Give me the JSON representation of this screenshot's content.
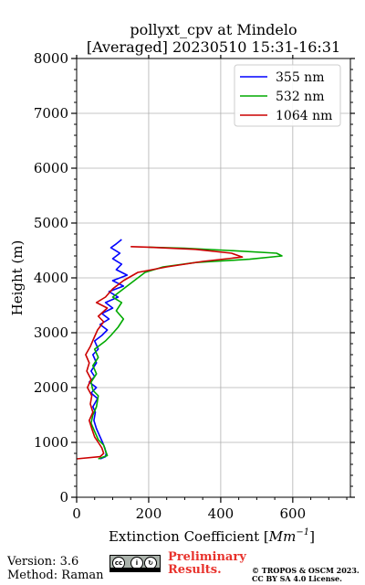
{
  "chart_data": {
    "type": "line",
    "title": "pollyxt_cpv at Mindelo",
    "subtitle": "[Averaged] 20230510 15:31-16:31",
    "xlabel": "Extinction Coefficient [",
    "xlabel_unit": "Mm",
    "xlabel_exp": "−1",
    "xlabel_close": "]",
    "ylabel": "Height (m)",
    "xlim": [
      0,
      760
    ],
    "ylim": [
      0,
      8000
    ],
    "xticks": [
      0,
      200,
      400,
      600
    ],
    "yticks": [
      0,
      1000,
      2000,
      3000,
      4000,
      5000,
      6000,
      7000,
      8000
    ],
    "grid": true,
    "legend_position": "top-right",
    "series": [
      {
        "name": "355 nm",
        "color": "#0000ff",
        "points": [
          [
            65,
            700
          ],
          [
            80,
            740
          ],
          [
            82,
            800
          ],
          [
            78,
            900
          ],
          [
            72,
            1000
          ],
          [
            65,
            1100
          ],
          [
            55,
            1250
          ],
          [
            48,
            1400
          ],
          [
            52,
            1550
          ],
          [
            45,
            1650
          ],
          [
            58,
            1800
          ],
          [
            40,
            1900
          ],
          [
            55,
            2000
          ],
          [
            35,
            2100
          ],
          [
            50,
            2200
          ],
          [
            40,
            2300
          ],
          [
            55,
            2450
          ],
          [
            45,
            2600
          ],
          [
            60,
            2700
          ],
          [
            50,
            2850
          ],
          [
            70,
            2950
          ],
          [
            85,
            3050
          ],
          [
            65,
            3150
          ],
          [
            90,
            3250
          ],
          [
            70,
            3350
          ],
          [
            100,
            3450
          ],
          [
            80,
            3550
          ],
          [
            115,
            3650
          ],
          [
            90,
            3750
          ],
          [
            130,
            3850
          ],
          [
            100,
            3950
          ],
          [
            140,
            4050
          ],
          [
            110,
            4150
          ],
          [
            125,
            4250
          ],
          [
            100,
            4350
          ],
          [
            120,
            4450
          ],
          [
            95,
            4550
          ],
          [
            110,
            4620
          ],
          [
            125,
            4700
          ]
        ]
      },
      {
        "name": "532 nm",
        "color": "#00aa00",
        "points": [
          [
            60,
            700
          ],
          [
            85,
            760
          ],
          [
            80,
            850
          ],
          [
            75,
            950
          ],
          [
            60,
            1050
          ],
          [
            50,
            1200
          ],
          [
            40,
            1350
          ],
          [
            45,
            1500
          ],
          [
            55,
            1650
          ],
          [
            60,
            1850
          ],
          [
            45,
            1950
          ],
          [
            40,
            2100
          ],
          [
            55,
            2250
          ],
          [
            45,
            2400
          ],
          [
            60,
            2550
          ],
          [
            50,
            2700
          ],
          [
            80,
            2850
          ],
          [
            95,
            2950
          ],
          [
            115,
            3100
          ],
          [
            130,
            3250
          ],
          [
            110,
            3400
          ],
          [
            125,
            3550
          ],
          [
            100,
            3650
          ],
          [
            120,
            3750
          ],
          [
            150,
            3900
          ],
          [
            190,
            4100
          ],
          [
            240,
            4200
          ],
          [
            330,
            4280
          ],
          [
            480,
            4340
          ],
          [
            570,
            4400
          ],
          [
            555,
            4450
          ],
          [
            420,
            4500
          ],
          [
            300,
            4540
          ],
          [
            200,
            4560
          ]
        ]
      },
      {
        "name": "1064 nm",
        "color": "#cc0000",
        "points": [
          [
            0,
            700
          ],
          [
            65,
            740
          ],
          [
            75,
            800
          ],
          [
            70,
            900
          ],
          [
            60,
            1000
          ],
          [
            50,
            1100
          ],
          [
            42,
            1250
          ],
          [
            35,
            1400
          ],
          [
            45,
            1550
          ],
          [
            38,
            1700
          ],
          [
            42,
            1850
          ],
          [
            30,
            2000
          ],
          [
            40,
            2150
          ],
          [
            28,
            2300
          ],
          [
            35,
            2450
          ],
          [
            25,
            2600
          ],
          [
            38,
            2750
          ],
          [
            48,
            2900
          ],
          [
            58,
            3050
          ],
          [
            75,
            3200
          ],
          [
            60,
            3300
          ],
          [
            85,
            3450
          ],
          [
            55,
            3550
          ],
          [
            80,
            3650
          ],
          [
            100,
            3800
          ],
          [
            130,
            3950
          ],
          [
            170,
            4100
          ],
          [
            250,
            4200
          ],
          [
            350,
            4300
          ],
          [
            460,
            4380
          ],
          [
            430,
            4450
          ],
          [
            330,
            4520
          ],
          [
            200,
            4560
          ],
          [
            150,
            4570
          ]
        ]
      }
    ]
  },
  "footer": {
    "version": "Version: 3.6",
    "method": "Method: Raman",
    "preliminary": "Preliminary",
    "results": "Results.",
    "copyright_line1": "© TROPOS & OSCM 2023.",
    "copyright_line2": "CC BY SA 4.0 License."
  },
  "license_badge": {
    "cc": "cc",
    "by": "i",
    "sa": "↻",
    "by_label": "BY",
    "sa_label": "SA"
  }
}
